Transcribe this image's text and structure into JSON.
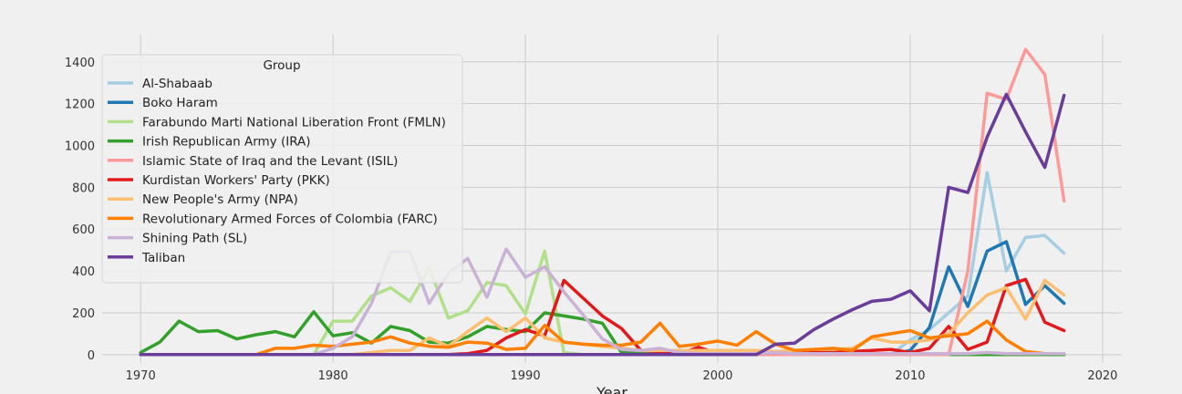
{
  "chart_data": {
    "type": "line",
    "xlabel": "Year",
    "ylabel": "",
    "xlim": [
      1968,
      2021
    ],
    "ylim": [
      -40,
      1530
    ],
    "xticks": [
      1970,
      1980,
      1990,
      2000,
      2010,
      2020
    ],
    "yticks": [
      0,
      200,
      400,
      600,
      800,
      1000,
      1200,
      1400
    ],
    "grid": true,
    "legend_title": "Group",
    "legend_position": "top-left",
    "x": [
      1970,
      1971,
      1972,
      1973,
      1974,
      1975,
      1976,
      1977,
      1978,
      1979,
      1980,
      1981,
      1982,
      1983,
      1984,
      1985,
      1986,
      1987,
      1988,
      1989,
      1990,
      1991,
      1992,
      1993,
      1994,
      1995,
      1996,
      1997,
      1998,
      1999,
      2000,
      2001,
      2002,
      2003,
      2004,
      2005,
      2006,
      2007,
      2008,
      2009,
      2010,
      2011,
      2012,
      2013,
      2014,
      2015,
      2016,
      2017,
      2018
    ],
    "series": [
      {
        "name": "Al-Shabaab",
        "color": "#a6cee3",
        "values": [
          0,
          0,
          0,
          0,
          0,
          0,
          0,
          0,
          0,
          0,
          0,
          0,
          0,
          0,
          0,
          0,
          0,
          0,
          0,
          0,
          0,
          0,
          0,
          0,
          0,
          0,
          0,
          0,
          0,
          0,
          0,
          0,
          0,
          0,
          0,
          0,
          0,
          0,
          0,
          0,
          70,
          120,
          200,
          280,
          870,
          400,
          560,
          570,
          485
        ]
      },
      {
        "name": "Boko Haram",
        "color": "#1f78b4",
        "values": [
          0,
          0,
          0,
          0,
          0,
          0,
          0,
          0,
          0,
          0,
          0,
          0,
          0,
          0,
          0,
          0,
          0,
          0,
          0,
          0,
          0,
          0,
          0,
          0,
          0,
          0,
          0,
          0,
          0,
          0,
          0,
          0,
          0,
          0,
          0,
          0,
          0,
          0,
          0,
          0,
          20,
          130,
          420,
          230,
          495,
          540,
          240,
          330,
          245
        ]
      },
      {
        "name": "Farabundo Marti National Liberation Front (FMLN)",
        "color": "#b2df8a",
        "values": [
          0,
          0,
          0,
          0,
          0,
          0,
          0,
          0,
          0,
          0,
          160,
          160,
          280,
          320,
          255,
          415,
          175,
          210,
          345,
          330,
          195,
          495,
          10,
          0,
          0,
          0,
          0,
          0,
          0,
          0,
          0,
          0,
          0,
          0,
          0,
          0,
          0,
          0,
          0,
          0,
          0,
          0,
          0,
          0,
          0,
          0,
          0,
          0,
          0
        ]
      },
      {
        "name": "Irish Republican Army (IRA)",
        "color": "#33a02c",
        "values": [
          10,
          60,
          160,
          110,
          115,
          75,
          95,
          110,
          85,
          205,
          90,
          105,
          55,
          135,
          115,
          60,
          55,
          85,
          135,
          120,
          110,
          200,
          185,
          170,
          150,
          10,
          5,
          0,
          0,
          0,
          0,
          0,
          0,
          0,
          0,
          0,
          0,
          0,
          0,
          0,
          0,
          0,
          0,
          0,
          0,
          0,
          0,
          0,
          0
        ]
      },
      {
        "name": "Islamic State of Iraq and the Levant (ISIL)",
        "color": "#fb9a99",
        "values": [
          0,
          0,
          0,
          0,
          0,
          0,
          0,
          0,
          0,
          0,
          0,
          0,
          0,
          0,
          0,
          0,
          0,
          0,
          0,
          0,
          0,
          0,
          0,
          0,
          0,
          0,
          0,
          0,
          0,
          0,
          0,
          0,
          0,
          0,
          0,
          0,
          0,
          0,
          0,
          0,
          0,
          0,
          0,
          400,
          1250,
          1220,
          1460,
          1340,
          735
        ]
      },
      {
        "name": "Kurdistan Workers' Party (PKK)",
        "color": "#e31a1c",
        "values": [
          0,
          0,
          0,
          0,
          0,
          0,
          0,
          0,
          0,
          0,
          0,
          0,
          0,
          0,
          0,
          0,
          0,
          5,
          20,
          80,
          120,
          90,
          355,
          270,
          185,
          125,
          20,
          15,
          5,
          35,
          5,
          5,
          5,
          10,
          10,
          15,
          20,
          15,
          20,
          25,
          10,
          30,
          135,
          25,
          60,
          330,
          360,
          155,
          115
        ]
      },
      {
        "name": "New People's Army (NPA)",
        "color": "#fdbf6f",
        "values": [
          0,
          0,
          0,
          0,
          0,
          0,
          0,
          0,
          0,
          0,
          0,
          0,
          10,
          20,
          20,
          80,
          40,
          110,
          175,
          110,
          175,
          80,
          60,
          50,
          40,
          30,
          20,
          20,
          20,
          20,
          20,
          20,
          20,
          15,
          20,
          25,
          25,
          30,
          80,
          60,
          60,
          70,
          100,
          200,
          285,
          320,
          170,
          355,
          285
        ]
      },
      {
        "name": "Revolutionary Armed Forces of Colombia (FARC)",
        "color": "#ff7f00",
        "values": [
          0,
          0,
          0,
          0,
          0,
          0,
          0,
          30,
          30,
          45,
          40,
          50,
          60,
          85,
          55,
          40,
          35,
          60,
          55,
          25,
          30,
          140,
          60,
          50,
          45,
          45,
          60,
          150,
          40,
          50,
          65,
          45,
          110,
          50,
          20,
          25,
          30,
          20,
          85,
          100,
          115,
          80,
          90,
          100,
          160,
          70,
          15,
          5,
          5
        ]
      },
      {
        "name": "Shining Path (SL)",
        "color": "#cab2d6",
        "values": [
          0,
          0,
          0,
          0,
          0,
          0,
          0,
          0,
          0,
          0,
          30,
          85,
          245,
          490,
          495,
          245,
          390,
          460,
          275,
          505,
          370,
          420,
          300,
          190,
          75,
          25,
          20,
          30,
          10,
          5,
          5,
          5,
          5,
          10,
          5,
          5,
          5,
          5,
          5,
          5,
          5,
          5,
          5,
          5,
          10,
          5,
          5,
          5,
          5
        ]
      },
      {
        "name": "Taliban",
        "color": "#6a3d9a",
        "values": [
          0,
          0,
          0,
          0,
          0,
          0,
          0,
          0,
          0,
          0,
          0,
          0,
          0,
          0,
          0,
          0,
          0,
          0,
          0,
          0,
          0,
          0,
          0,
          0,
          0,
          0,
          0,
          0,
          0,
          0,
          0,
          0,
          0,
          50,
          55,
          120,
          170,
          215,
          255,
          265,
          305,
          210,
          800,
          775,
          1040,
          1245,
          1065,
          895,
          1240
        ]
      }
    ]
  }
}
